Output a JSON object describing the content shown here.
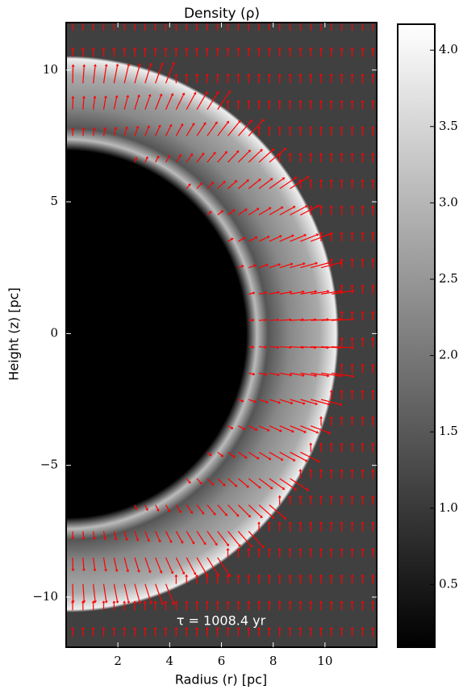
{
  "chart_data": {
    "type": "density-map",
    "title": "Density (ρ)",
    "x_label": "Radius (r) [pc]",
    "y_label": "Height (z) [pc]",
    "annotation": "τ = 1008.4 yr",
    "xlim": [
      0,
      12
    ],
    "xticks": [
      2,
      4,
      6,
      8,
      10
    ],
    "ylim": [
      -11.9,
      11.8
    ],
    "yticks": [
      {
        "value": -10,
        "label": "−10"
      },
      {
        "value": -5,
        "label": "−5"
      },
      0,
      5,
      10
    ],
    "colorbar": {
      "lim": [
        0.09,
        4.17
      ],
      "ticks": [
        {
          "value": 0.5,
          "label": "0.5"
        },
        {
          "value": 1,
          "label": "1.0"
        },
        {
          "value": 1.5,
          "label": "1.5"
        },
        {
          "value": 2,
          "label": "2.0"
        },
        {
          "value": 2.5,
          "label": "2.5"
        },
        {
          "value": 3,
          "label": "3.0"
        },
        {
          "value": 3.5,
          "label": "3.5"
        },
        {
          "value": 4,
          "label": "4.0"
        }
      ],
      "colormap": [
        "#000000",
        "#ffffff"
      ]
    },
    "arrow_color": "#ff0000"
  }
}
